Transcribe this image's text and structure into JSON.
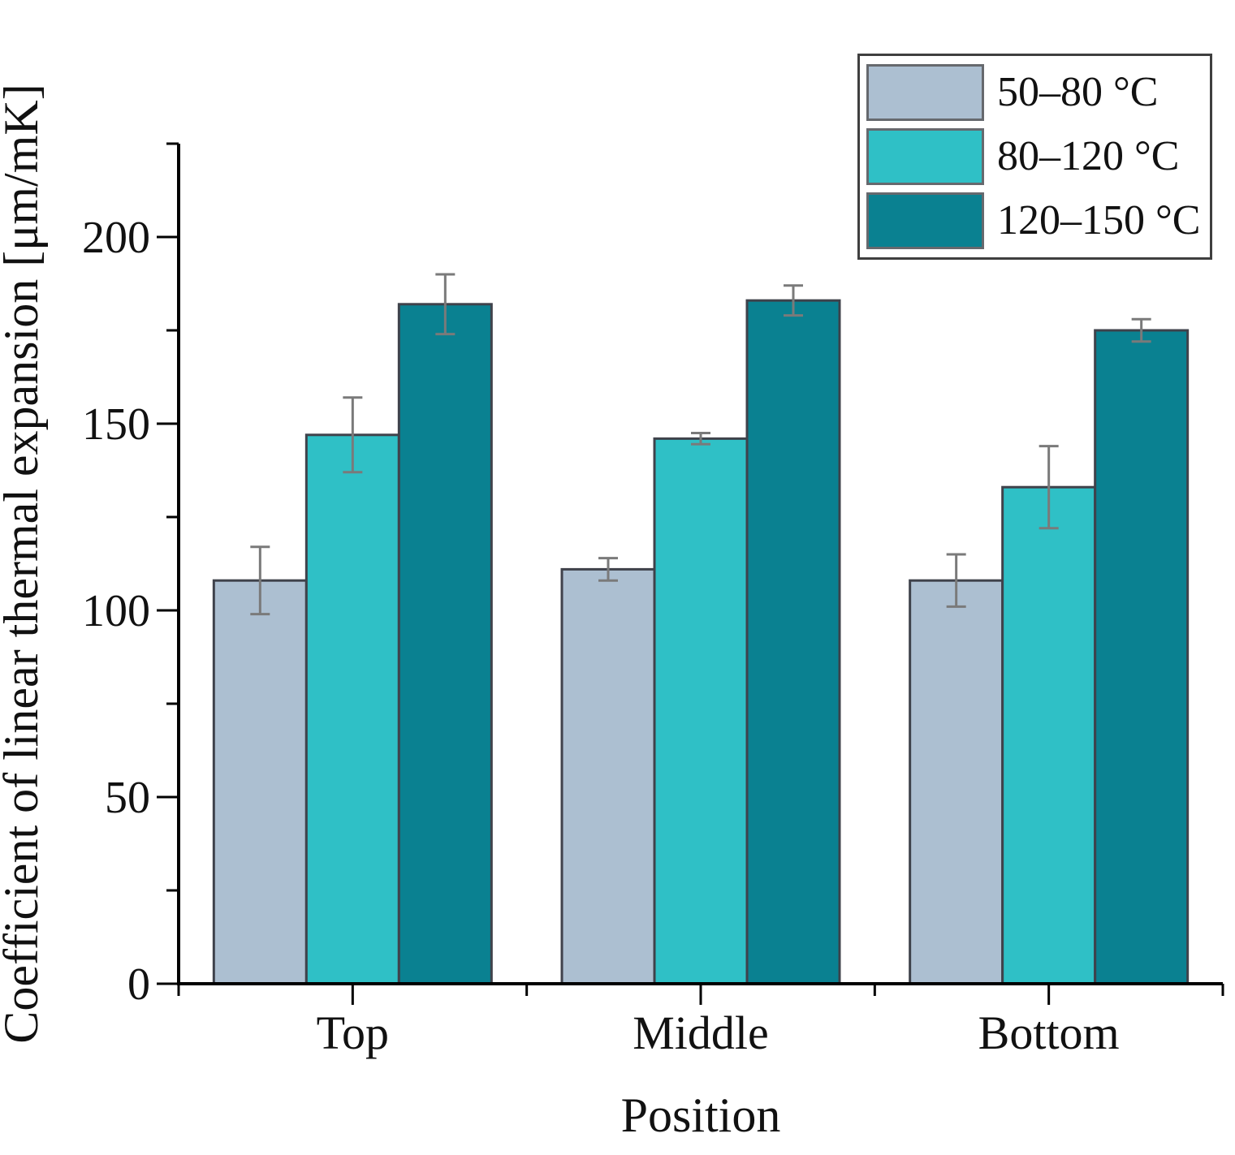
{
  "chart_data": {
    "type": "bar",
    "title": "",
    "xlabel": "Position",
    "ylabel": "Coefficient of linear thermal expansion [μm/mK]",
    "categories": [
      "Top",
      "Middle",
      "Bottom"
    ],
    "series": [
      {
        "name": "50–80 °C",
        "color": "#acbfd1",
        "values": [
          108,
          111,
          108
        ],
        "errors": [
          9,
          3,
          7
        ]
      },
      {
        "name": "80–120 °C",
        "color": "#2fc0c6",
        "values": [
          147,
          146,
          133
        ],
        "errors": [
          10,
          1.5,
          11
        ]
      },
      {
        "name": "120–150 °C",
        "color": "#0a8191",
        "values": [
          182,
          183,
          175
        ],
        "errors": [
          8,
          4,
          3
        ]
      }
    ],
    "y_axis": {
      "min": 0,
      "max": 225,
      "major_ticks": [
        0,
        50,
        100,
        150,
        200
      ],
      "major_tick_labels": [
        "0",
        "50",
        "100",
        "150",
        "200"
      ],
      "minor_ticks": [
        25,
        75,
        125,
        175,
        225
      ]
    },
    "x_axis": {
      "tick_labels": [
        "Top",
        "Middle",
        "Bottom"
      ]
    },
    "legend_position": "top-right",
    "grid": false,
    "ylim": [
      0,
      225
    ],
    "colors": {
      "axis": "#000000",
      "text": "#111111",
      "bar_edge": "#3f424b",
      "error_bar": "#7a7a7a",
      "legend_border": "#3f3f3f",
      "swatch_border": "#66696e",
      "background": "#ffffff"
    }
  }
}
